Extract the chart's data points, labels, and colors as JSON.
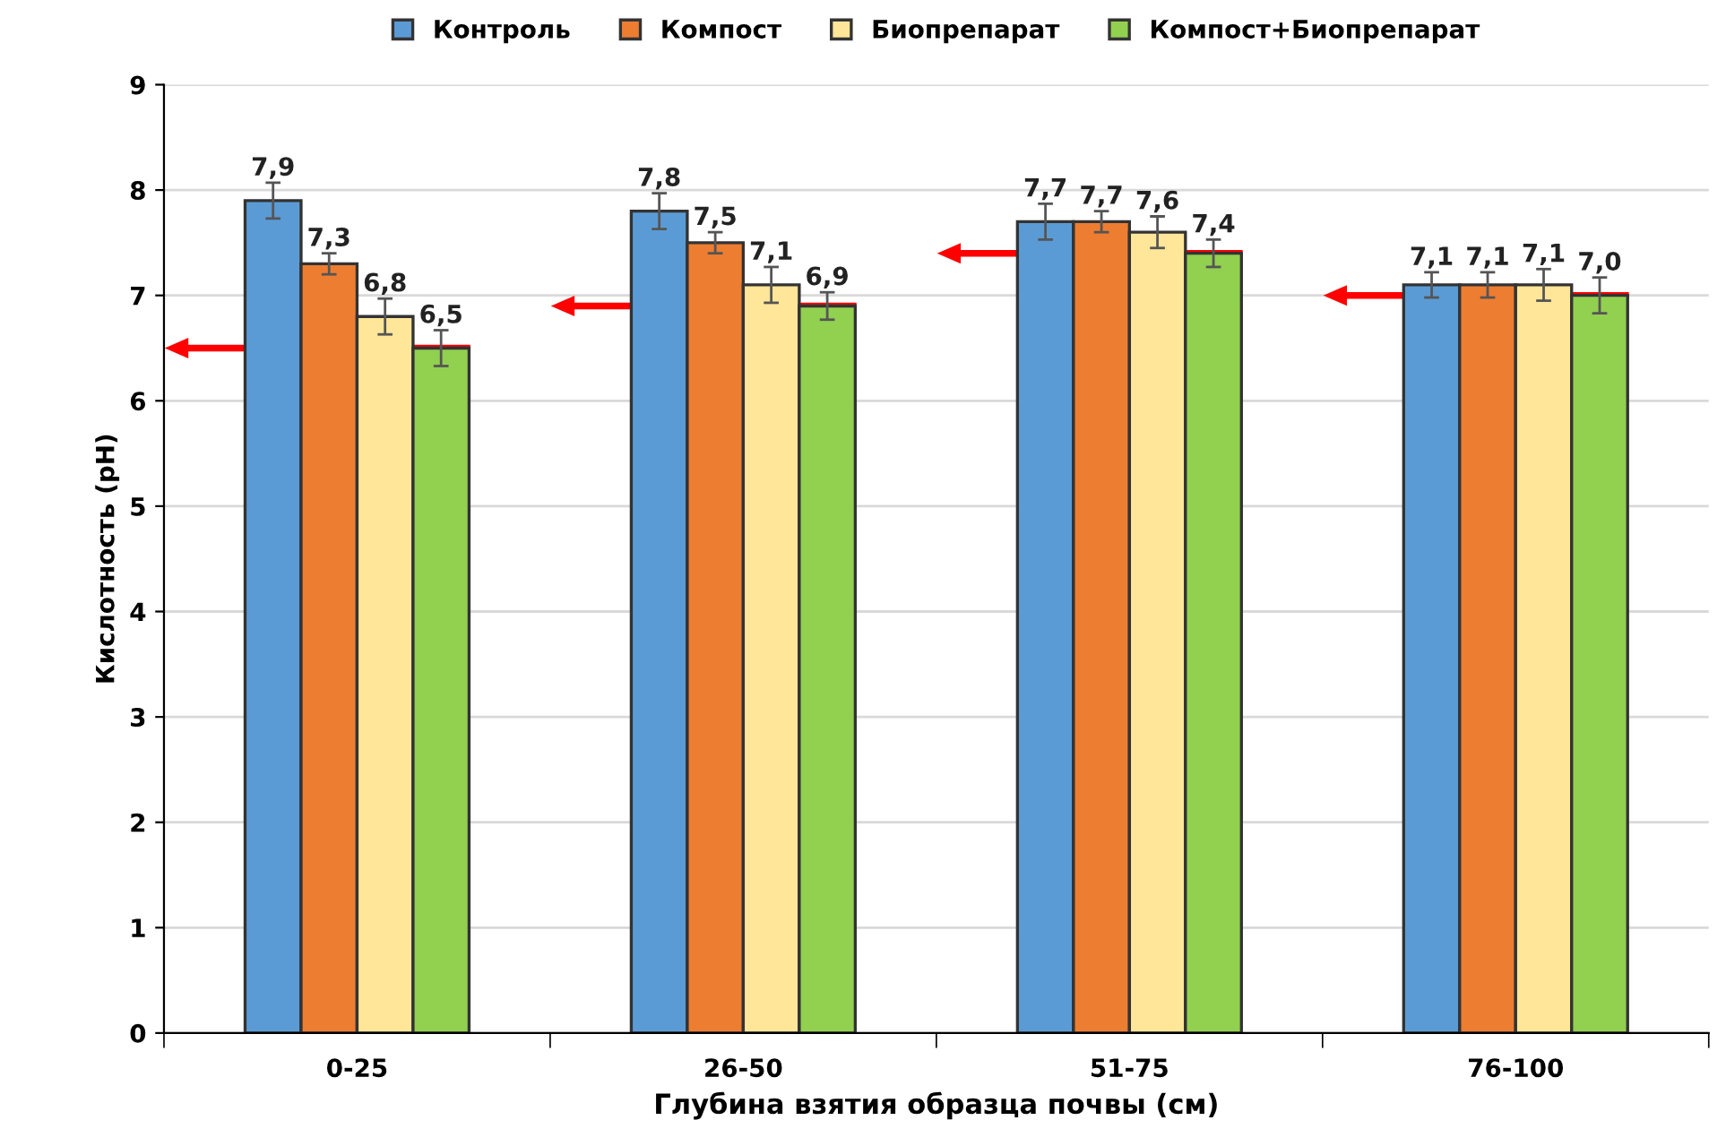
{
  "chart_data": {
    "type": "bar",
    "xlabel": "Глубина взятия образца почвы (см)",
    "ylabel": "Кислотность (pH)",
    "categories": [
      "0-25",
      "26-50",
      "51-75",
      "76-100"
    ],
    "series": [
      {
        "name": "Контроль",
        "color": "#5b9bd5",
        "values": [
          7.9,
          7.8,
          7.7,
          7.1
        ],
        "errors": [
          0.17,
          0.17,
          0.17,
          0.12
        ],
        "value_labels": [
          "7,9",
          "7,8",
          "7,7",
          "7,1"
        ]
      },
      {
        "name": "Компост",
        "color": "#ed7d31",
        "values": [
          7.3,
          7.5,
          7.7,
          7.1
        ],
        "errors": [
          0.1,
          0.1,
          0.1,
          0.12
        ],
        "value_labels": [
          "7,3",
          "7,5",
          "7,7",
          "7,1"
        ]
      },
      {
        "name": "Биопрепарат",
        "color": "#ffe699",
        "values": [
          6.8,
          7.1,
          7.6,
          7.1
        ],
        "errors": [
          0.17,
          0.17,
          0.15,
          0.15
        ],
        "value_labels": [
          "6,8",
          "7,1",
          "7,6",
          "7,1"
        ]
      },
      {
        "name": "Компост+Биопрепарат",
        "color": "#92d050",
        "values": [
          6.5,
          6.9,
          7.4,
          7.0
        ],
        "errors": [
          0.17,
          0.13,
          0.13,
          0.17
        ],
        "value_labels": [
          "6,5",
          "6,9",
          "7,4",
          "7,0"
        ]
      }
    ],
    "ylim": [
      0,
      9
    ],
    "yticks": [
      0,
      1,
      2,
      3,
      4,
      5,
      6,
      7,
      8,
      9
    ],
    "grid": "y",
    "legend": "top"
  }
}
